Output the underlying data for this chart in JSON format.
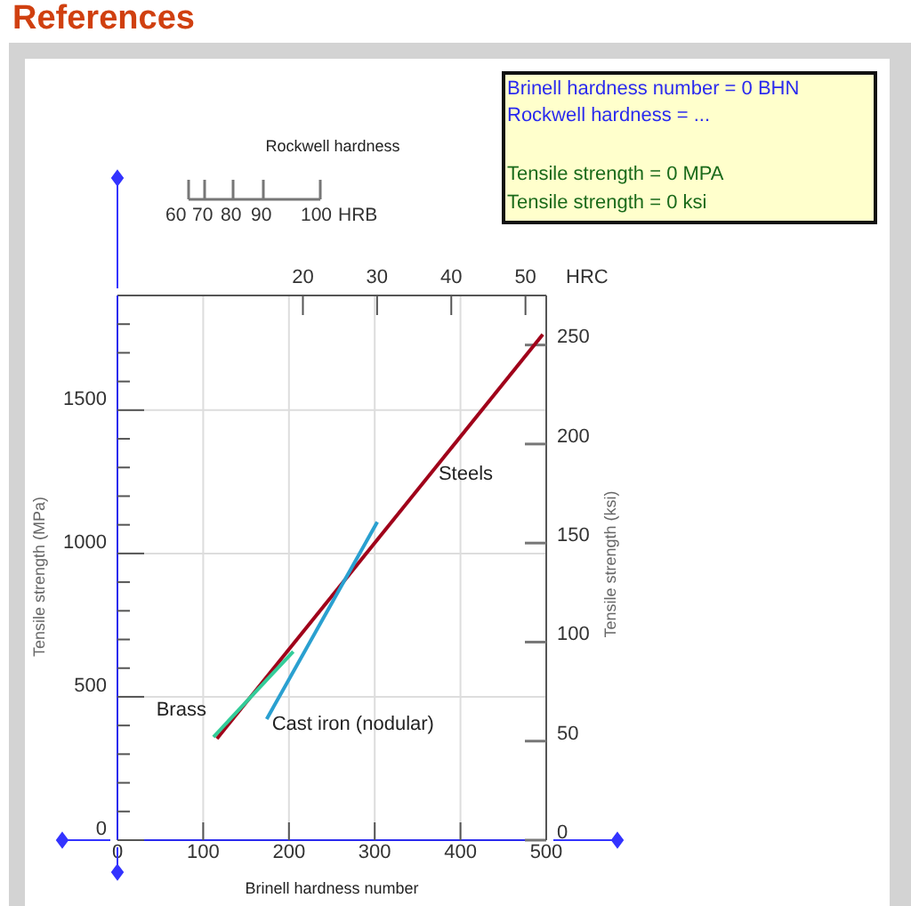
{
  "chart_data": {
    "type": "line",
    "title": "References",
    "xlabel": "Brinell hardness number",
    "ylabel": "Tensile strength (MPa)",
    "y2label": "Tensile strength (ksi)",
    "x2label": "HRC",
    "xlim": [
      0,
      500
    ],
    "xticks": [
      0,
      100,
      200,
      300,
      400,
      500
    ],
    "ylim": [
      0,
      1900
    ],
    "yticks": [
      0,
      {
        "value": 100,
        "label": null
      },
      {
        "value": 200,
        "label": null
      },
      {
        "value": 300,
        "label": null
      },
      {
        "value": 400,
        "label": null
      },
      500,
      {
        "value": 600,
        "label": null
      },
      {
        "value": 700,
        "label": null
      },
      {
        "value": 800,
        "label": null
      },
      {
        "value": 900,
        "label": null
      },
      1000,
      {
        "value": 1100,
        "label": null
      },
      {
        "value": 1200,
        "label": null
      },
      {
        "value": 1300,
        "label": null
      },
      {
        "value": 1400,
        "label": null
      },
      1500,
      {
        "value": 1600,
        "label": null
      },
      {
        "value": 1700,
        "label": null
      },
      {
        "value": 1800,
        "label": null
      }
    ],
    "y2lim": [
      0,
      275
    ],
    "y2ticks": [
      0,
      50,
      100,
      150,
      200,
      250
    ],
    "x2lim": [
      -5,
      52.8
    ],
    "x2ticks": [
      20,
      30,
      40,
      50
    ],
    "grid": true,
    "marker": "none",
    "line_style": "solid",
    "series": [
      {
        "name": "Steels",
        "color": "#a0001a",
        "x": [
          116,
          496
        ],
        "values": [
          354,
          1764
        ]
      },
      {
        "name": "Brass",
        "color": "#33cc99",
        "x": [
          112,
          205
        ],
        "values": [
          360,
          658
        ]
      },
      {
        "name": "Cast iron (nodular)",
        "color": "#2aa0d0",
        "x": [
          174,
          303
        ],
        "values": [
          422,
          1110
        ]
      }
    ],
    "annotations": [
      "Rockwell hardness",
      "60",
      "70",
      "80",
      "90",
      "100",
      "HRB",
      "Brinell hardness number = 0 BHN",
      "Rockwell hardness = ...",
      "Tensile strength = 0 MPA",
      "Tensile strength = 0 ksi"
    ]
  }
}
